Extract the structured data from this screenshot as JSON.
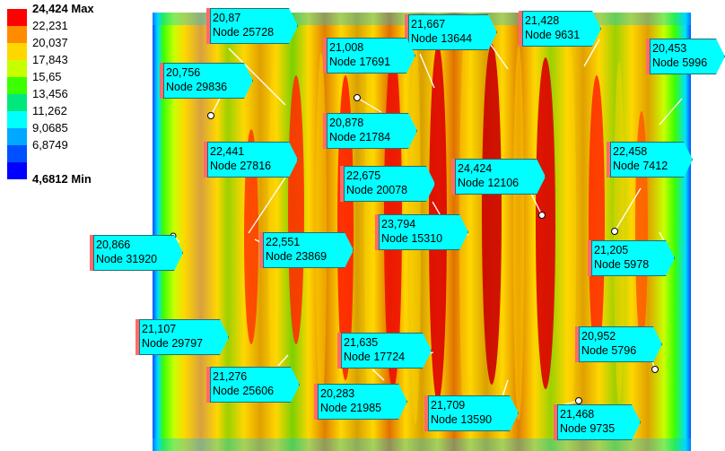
{
  "legend": {
    "max_label": "24,424 Max",
    "min_label": "4,6812 Min",
    "levels": [
      {
        "label": "22,231",
        "color": "#ff0000"
      },
      {
        "label": "20,037",
        "color": "#ff8c00"
      },
      {
        "label": "17,843",
        "color": "#ffd700"
      },
      {
        "label": "15,65",
        "color": "#c8ff00"
      },
      {
        "label": "13,456",
        "color": "#3cff00"
      },
      {
        "label": "11,262",
        "color": "#00e87c"
      },
      {
        "label": "9,0685",
        "color": "#00ffff"
      },
      {
        "label": "6,8749",
        "color": "#00a8ff"
      },
      {
        "label": "",
        "color": "#0050ff"
      },
      {
        "label": "",
        "color": "#0000ff"
      }
    ]
  },
  "callouts": [
    {
      "value": "20,87",
      "node": "Node 25728"
    },
    {
      "value": "21,667",
      "node": "Node 13644"
    },
    {
      "value": "21,428",
      "node": "Node 9631"
    },
    {
      "value": "21,008",
      "node": "Node 17691"
    },
    {
      "value": "20,453",
      "node": "Node 5996"
    },
    {
      "value": "20,756",
      "node": "Node 29836"
    },
    {
      "value": "20,878",
      "node": "Node 21784"
    },
    {
      "value": "22,441",
      "node": "Node 27816"
    },
    {
      "value": "22,675",
      "node": "Node 20078"
    },
    {
      "value": "24,424",
      "node": "Node 12106"
    },
    {
      "value": "22,458",
      "node": "Node 7412"
    },
    {
      "value": "23,794",
      "node": "Node 15310"
    },
    {
      "value": "20,866",
      "node": "Node 31920"
    },
    {
      "value": "22,551",
      "node": "Node 23869"
    },
    {
      "value": "21,205",
      "node": "Node 5978"
    },
    {
      "value": "21,107",
      "node": "Node 29797"
    },
    {
      "value": "20,952",
      "node": "Node 5796"
    },
    {
      "value": "21,635",
      "node": "Node 17724"
    },
    {
      "value": "21,276",
      "node": "Node 25606"
    },
    {
      "value": "20,283",
      "node": "Node 21985"
    },
    {
      "value": "21,709",
      "node": "Node 13590"
    },
    {
      "value": "21,468",
      "node": "Node 9735"
    }
  ]
}
